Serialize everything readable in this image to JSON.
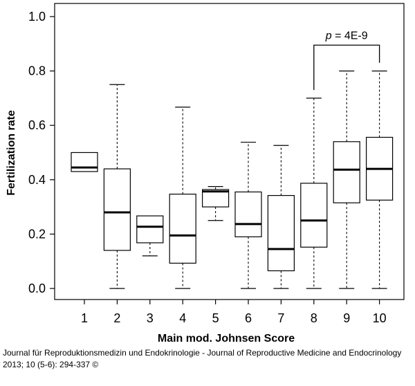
{
  "chart_data": {
    "type": "box",
    "title": "",
    "xlabel": "Main mod. Johnsen Score",
    "ylabel": "Fertilization rate",
    "ylim": [
      0,
      1
    ],
    "yticks": [
      "0.0",
      "0.2",
      "0.4",
      "0.6",
      "0.8",
      "1.0"
    ],
    "categories": [
      "1",
      "2",
      "3",
      "4",
      "5",
      "6",
      "7",
      "8",
      "9",
      "10"
    ],
    "boxes": [
      {
        "category": "1",
        "min": 0.43,
        "q1": 0.43,
        "median": 0.445,
        "q3": 0.5,
        "max": 0.5
      },
      {
        "category": "2",
        "min": 0.0,
        "q1": 0.14,
        "median": 0.28,
        "q3": 0.44,
        "max": 0.75
      },
      {
        "category": "3",
        "min": 0.12,
        "q1": 0.168,
        "median": 0.227,
        "q3": 0.267,
        "max": 0.267
      },
      {
        "category": "4",
        "min": 0.0,
        "q1": 0.093,
        "median": 0.195,
        "q3": 0.347,
        "max": 0.667
      },
      {
        "category": "5",
        "min": 0.25,
        "q1": 0.3,
        "median": 0.357,
        "q3": 0.364,
        "max": 0.375
      },
      {
        "category": "6",
        "min": 0.0,
        "q1": 0.19,
        "median": 0.237,
        "q3": 0.355,
        "max": 0.538
      },
      {
        "category": "7",
        "min": 0.0,
        "q1": 0.065,
        "median": 0.145,
        "q3": 0.342,
        "max": 0.526
      },
      {
        "category": "8",
        "min": 0.0,
        "q1": 0.152,
        "median": 0.25,
        "q3": 0.387,
        "max": 0.7
      },
      {
        "category": "9",
        "min": 0.0,
        "q1": 0.315,
        "median": 0.437,
        "q3": 0.54,
        "max": 0.8
      },
      {
        "category": "10",
        "min": 0.0,
        "q1": 0.325,
        "median": 0.44,
        "q3": 0.556,
        "max": 0.8
      }
    ],
    "annotation": {
      "from": "8",
      "to": "10",
      "text_italic": "p",
      "text_rest": " = 4E-9",
      "bracket_top": 0.895
    }
  },
  "caption": {
    "line1": "Journal für Reproduktionsmedizin und Endokrinologie - Journal of Reproductive Medicine and Endocrinology",
    "line2": "2013; 10 (5-6): 294-337 ©"
  }
}
